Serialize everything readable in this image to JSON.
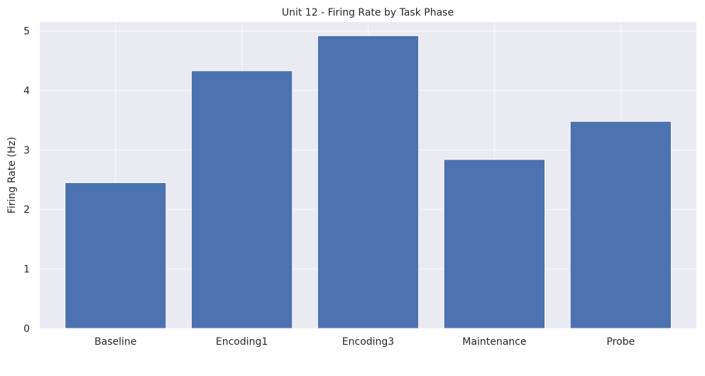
{
  "chart_data": {
    "type": "bar",
    "title": "Unit 12 - Firing Rate by Task Phase",
    "xlabel": "",
    "ylabel": "Firing Rate (Hz)",
    "categories": [
      "Baseline",
      "Encoding1",
      "Encoding3",
      "Maintenance",
      "Probe"
    ],
    "values": [
      2.45,
      4.33,
      4.92,
      2.84,
      3.48
    ],
    "ylim": [
      0,
      5.15
    ],
    "yticks": [
      0,
      1,
      2,
      3,
      4,
      5
    ],
    "grid": true,
    "colors": {
      "bar": "#4c72b0",
      "bar_edge": "#ffffff",
      "plot_background": "#eaeaf2",
      "grid": "#ffffff",
      "text": "#262626"
    }
  }
}
